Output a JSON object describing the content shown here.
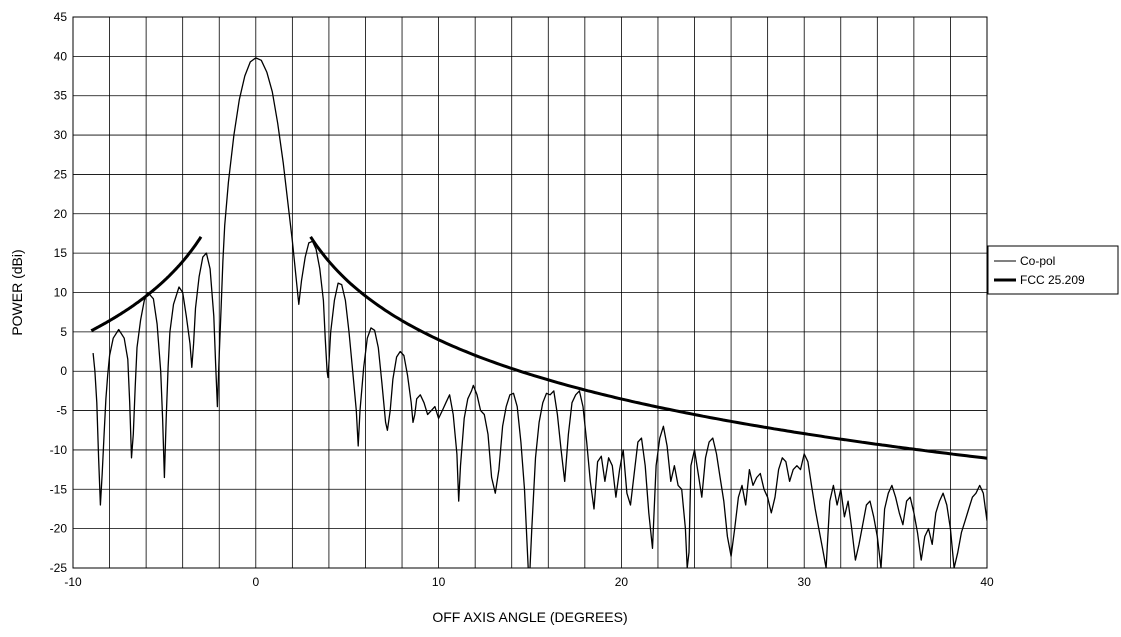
{
  "chart_data": {
    "type": "line",
    "xlabel": "OFF AXIS ANGLE (DEGREES)",
    "ylabel": "POWER (dBi)",
    "xlim": [
      -10,
      40
    ],
    "ylim": [
      -25,
      45
    ],
    "x_ticks": [
      -10,
      0,
      10,
      20,
      30,
      40
    ],
    "y_ticks": [
      -25,
      -20,
      -15,
      -10,
      -5,
      0,
      5,
      10,
      15,
      20,
      25,
      30,
      35,
      40,
      45
    ],
    "x_minor_step": 2,
    "grid": true,
    "legend": "right",
    "series": [
      {
        "name": "Co-pol",
        "stroke": "thin",
        "color": "#000000",
        "points": [
          [
            -8.9,
            2.3
          ],
          [
            -8.8,
            0.0
          ],
          [
            -8.7,
            -4.0
          ],
          [
            -8.6,
            -11.0
          ],
          [
            -8.5,
            -17.0
          ],
          [
            -8.4,
            -13.0
          ],
          [
            -8.3,
            -8.0
          ],
          [
            -8.2,
            -3.5
          ],
          [
            -8.1,
            -0.5
          ],
          [
            -8.0,
            2.0
          ],
          [
            -7.8,
            4.2
          ],
          [
            -7.5,
            5.3
          ],
          [
            -7.2,
            4.2
          ],
          [
            -7.0,
            1.5
          ],
          [
            -6.9,
            -4.0
          ],
          [
            -6.8,
            -11.0
          ],
          [
            -6.7,
            -8.0
          ],
          [
            -6.6,
            -2.0
          ],
          [
            -6.5,
            3.0
          ],
          [
            -6.3,
            6.5
          ],
          [
            -6.1,
            9.0
          ],
          [
            -5.9,
            10.0
          ],
          [
            -5.6,
            9.2
          ],
          [
            -5.4,
            6.0
          ],
          [
            -5.2,
            0.0
          ],
          [
            -5.1,
            -6.0
          ],
          [
            -5.0,
            -13.5
          ],
          [
            -4.9,
            -6.0
          ],
          [
            -4.8,
            0.5
          ],
          [
            -4.7,
            5.0
          ],
          [
            -4.5,
            8.5
          ],
          [
            -4.2,
            10.7
          ],
          [
            -4.0,
            10.0
          ],
          [
            -3.8,
            7.0
          ],
          [
            -3.6,
            3.5
          ],
          [
            -3.5,
            0.5
          ],
          [
            -3.4,
            3.5
          ],
          [
            -3.3,
            8.0
          ],
          [
            -3.1,
            12.0
          ],
          [
            -2.9,
            14.5
          ],
          [
            -2.7,
            15.0
          ],
          [
            -2.5,
            13.0
          ],
          [
            -2.3,
            7.0
          ],
          [
            -2.2,
            1.0
          ],
          [
            -2.1,
            -4.5
          ],
          [
            -2.0,
            2.0
          ],
          [
            -1.9,
            8.0
          ],
          [
            -1.8,
            14.0
          ],
          [
            -1.7,
            18.5
          ],
          [
            -1.5,
            24.0
          ],
          [
            -1.2,
            30.0
          ],
          [
            -0.9,
            34.5
          ],
          [
            -0.6,
            37.5
          ],
          [
            -0.3,
            39.3
          ],
          [
            0.0,
            39.8
          ],
          [
            0.3,
            39.5
          ],
          [
            0.6,
            38.0
          ],
          [
            0.9,
            35.5
          ],
          [
            1.2,
            31.5
          ],
          [
            1.5,
            26.5
          ],
          [
            1.8,
            20.5
          ],
          [
            2.0,
            16.5
          ],
          [
            2.2,
            12.0
          ],
          [
            2.35,
            8.5
          ],
          [
            2.5,
            11.5
          ],
          [
            2.7,
            14.5
          ],
          [
            2.9,
            16.3
          ],
          [
            3.1,
            16.5
          ],
          [
            3.3,
            15.5
          ],
          [
            3.5,
            13.0
          ],
          [
            3.7,
            9.0
          ],
          [
            3.8,
            4.0
          ],
          [
            3.9,
            0.0
          ],
          [
            3.95,
            -0.8
          ],
          [
            4.0,
            1.0
          ],
          [
            4.1,
            5.0
          ],
          [
            4.3,
            9.0
          ],
          [
            4.5,
            11.2
          ],
          [
            4.7,
            11.0
          ],
          [
            4.9,
            9.0
          ],
          [
            5.1,
            5.0
          ],
          [
            5.3,
            0.0
          ],
          [
            5.5,
            -5.0
          ],
          [
            5.6,
            -9.5
          ],
          [
            5.7,
            -5.0
          ],
          [
            5.9,
            0.5
          ],
          [
            6.1,
            4.2
          ],
          [
            6.3,
            5.5
          ],
          [
            6.5,
            5.2
          ],
          [
            6.7,
            3.0
          ],
          [
            6.9,
            -1.5
          ],
          [
            7.1,
            -6.5
          ],
          [
            7.2,
            -7.5
          ],
          [
            7.35,
            -5.0
          ],
          [
            7.5,
            -1.0
          ],
          [
            7.7,
            1.8
          ],
          [
            7.9,
            2.5
          ],
          [
            8.1,
            2.0
          ],
          [
            8.3,
            -0.5
          ],
          [
            8.5,
            -4.0
          ],
          [
            8.6,
            -6.5
          ],
          [
            8.7,
            -5.5
          ],
          [
            8.8,
            -3.5
          ],
          [
            9.0,
            -3.0
          ],
          [
            9.2,
            -4.0
          ],
          [
            9.4,
            -5.5
          ],
          [
            9.6,
            -5.0
          ],
          [
            9.8,
            -4.5
          ],
          [
            10.0,
            -6.0
          ],
          [
            10.2,
            -5.0
          ],
          [
            10.4,
            -4.0
          ],
          [
            10.6,
            -3.0
          ],
          [
            10.8,
            -5.5
          ],
          [
            11.0,
            -10.5
          ],
          [
            11.1,
            -16.5
          ],
          [
            11.2,
            -12.0
          ],
          [
            11.4,
            -6.0
          ],
          [
            11.6,
            -3.5
          ],
          [
            11.8,
            -2.5
          ],
          [
            11.9,
            -1.8
          ],
          [
            12.1,
            -3.0
          ],
          [
            12.3,
            -5.0
          ],
          [
            12.5,
            -5.5
          ],
          [
            12.7,
            -8.0
          ],
          [
            12.9,
            -13.5
          ],
          [
            13.1,
            -15.5
          ],
          [
            13.3,
            -12.5
          ],
          [
            13.5,
            -7.0
          ],
          [
            13.7,
            -4.5
          ],
          [
            13.9,
            -3.0
          ],
          [
            14.1,
            -2.8
          ],
          [
            14.3,
            -4.5
          ],
          [
            14.5,
            -9.0
          ],
          [
            14.7,
            -15.0
          ],
          [
            14.9,
            -25.0
          ],
          [
            15.0,
            -25.0
          ],
          [
            15.1,
            -20.0
          ],
          [
            15.3,
            -11.0
          ],
          [
            15.5,
            -6.5
          ],
          [
            15.7,
            -4.0
          ],
          [
            15.9,
            -2.8
          ],
          [
            16.1,
            -3.0
          ],
          [
            16.3,
            -2.5
          ],
          [
            16.5,
            -5.5
          ],
          [
            16.7,
            -10.0
          ],
          [
            16.9,
            -14.0
          ],
          [
            17.1,
            -8.0
          ],
          [
            17.3,
            -4.0
          ],
          [
            17.5,
            -3.0
          ],
          [
            17.7,
            -2.5
          ],
          [
            17.9,
            -4.5
          ],
          [
            18.1,
            -9.0
          ],
          [
            18.3,
            -14.0
          ],
          [
            18.5,
            -17.5
          ],
          [
            18.7,
            -11.5
          ],
          [
            18.9,
            -10.8
          ],
          [
            19.1,
            -14.0
          ],
          [
            19.3,
            -11.0
          ],
          [
            19.5,
            -12.0
          ],
          [
            19.7,
            -16.0
          ],
          [
            19.9,
            -12.5
          ],
          [
            20.1,
            -10.0
          ],
          [
            20.3,
            -15.5
          ],
          [
            20.5,
            -17.0
          ],
          [
            20.7,
            -13.0
          ],
          [
            20.9,
            -9.0
          ],
          [
            21.1,
            -8.5
          ],
          [
            21.3,
            -12.0
          ],
          [
            21.5,
            -18.0
          ],
          [
            21.7,
            -22.5
          ],
          [
            21.9,
            -12.0
          ],
          [
            22.1,
            -8.5
          ],
          [
            22.3,
            -7.0
          ],
          [
            22.5,
            -9.5
          ],
          [
            22.7,
            -14.0
          ],
          [
            22.9,
            -12.0
          ],
          [
            23.1,
            -14.5
          ],
          [
            23.3,
            -15.0
          ],
          [
            23.5,
            -20.0
          ],
          [
            23.6,
            -25.0
          ],
          [
            23.7,
            -23.0
          ],
          [
            23.8,
            -12.0
          ],
          [
            24.0,
            -10.0
          ],
          [
            24.2,
            -13.0
          ],
          [
            24.4,
            -16.0
          ],
          [
            24.6,
            -11.0
          ],
          [
            24.8,
            -9.0
          ],
          [
            25.0,
            -8.5
          ],
          [
            25.2,
            -10.5
          ],
          [
            25.4,
            -13.5
          ],
          [
            25.6,
            -16.5
          ],
          [
            25.8,
            -21.0
          ],
          [
            26.0,
            -23.5
          ],
          [
            26.2,
            -20.0
          ],
          [
            26.4,
            -16.0
          ],
          [
            26.6,
            -14.5
          ],
          [
            26.8,
            -17.0
          ],
          [
            27.0,
            -12.5
          ],
          [
            27.2,
            -14.5
          ],
          [
            27.4,
            -13.5
          ],
          [
            27.6,
            -13.0
          ],
          [
            27.8,
            -15.0
          ],
          [
            28.0,
            -16.0
          ],
          [
            28.2,
            -18.0
          ],
          [
            28.4,
            -16.0
          ],
          [
            28.6,
            -12.5
          ],
          [
            28.8,
            -11.0
          ],
          [
            29.0,
            -11.5
          ],
          [
            29.2,
            -14.0
          ],
          [
            29.4,
            -12.5
          ],
          [
            29.6,
            -12.0
          ],
          [
            29.8,
            -12.5
          ],
          [
            30.0,
            -10.5
          ],
          [
            30.2,
            -11.5
          ],
          [
            30.4,
            -14.5
          ],
          [
            30.6,
            -17.5
          ],
          [
            30.8,
            -20.0
          ],
          [
            31.0,
            -22.5
          ],
          [
            31.2,
            -25.0
          ],
          [
            31.4,
            -16.5
          ],
          [
            31.6,
            -14.5
          ],
          [
            31.8,
            -17.0
          ],
          [
            32.0,
            -15.0
          ],
          [
            32.2,
            -18.5
          ],
          [
            32.4,
            -16.5
          ],
          [
            32.6,
            -20.0
          ],
          [
            32.8,
            -24.0
          ],
          [
            33.0,
            -22.0
          ],
          [
            33.2,
            -19.5
          ],
          [
            33.4,
            -17.0
          ],
          [
            33.6,
            -16.5
          ],
          [
            33.8,
            -18.5
          ],
          [
            34.0,
            -21.0
          ],
          [
            34.2,
            -25.0
          ],
          [
            34.4,
            -17.5
          ],
          [
            34.6,
            -15.5
          ],
          [
            34.8,
            -14.5
          ],
          [
            35.0,
            -16.0
          ],
          [
            35.2,
            -18.0
          ],
          [
            35.4,
            -19.5
          ],
          [
            35.6,
            -16.5
          ],
          [
            35.8,
            -16.0
          ],
          [
            36.0,
            -18.0
          ],
          [
            36.2,
            -20.5
          ],
          [
            36.4,
            -24.0
          ],
          [
            36.6,
            -21.0
          ],
          [
            36.8,
            -20.0
          ],
          [
            37.0,
            -22.0
          ],
          [
            37.2,
            -18.0
          ],
          [
            37.4,
            -16.5
          ],
          [
            37.6,
            -15.5
          ],
          [
            37.8,
            -17.0
          ],
          [
            38.0,
            -20.0
          ],
          [
            38.2,
            -25.0
          ],
          [
            38.4,
            -23.0
          ],
          [
            38.6,
            -20.5
          ],
          [
            38.8,
            -19.0
          ],
          [
            39.0,
            -17.5
          ],
          [
            39.2,
            -16.0
          ],
          [
            39.4,
            -15.5
          ],
          [
            39.6,
            -14.5
          ],
          [
            39.8,
            -15.5
          ],
          [
            40.0,
            -19.0
          ]
        ]
      },
      {
        "name": "FCC 25.209",
        "stroke": "thick",
        "color": "#000000",
        "formula": "29 - 25*log10(|theta|)",
        "segments": [
          {
            "x_from": -9.0,
            "x_to": -3.0
          },
          {
            "x_from": 3.0,
            "x_to": 40.0
          }
        ]
      }
    ]
  }
}
